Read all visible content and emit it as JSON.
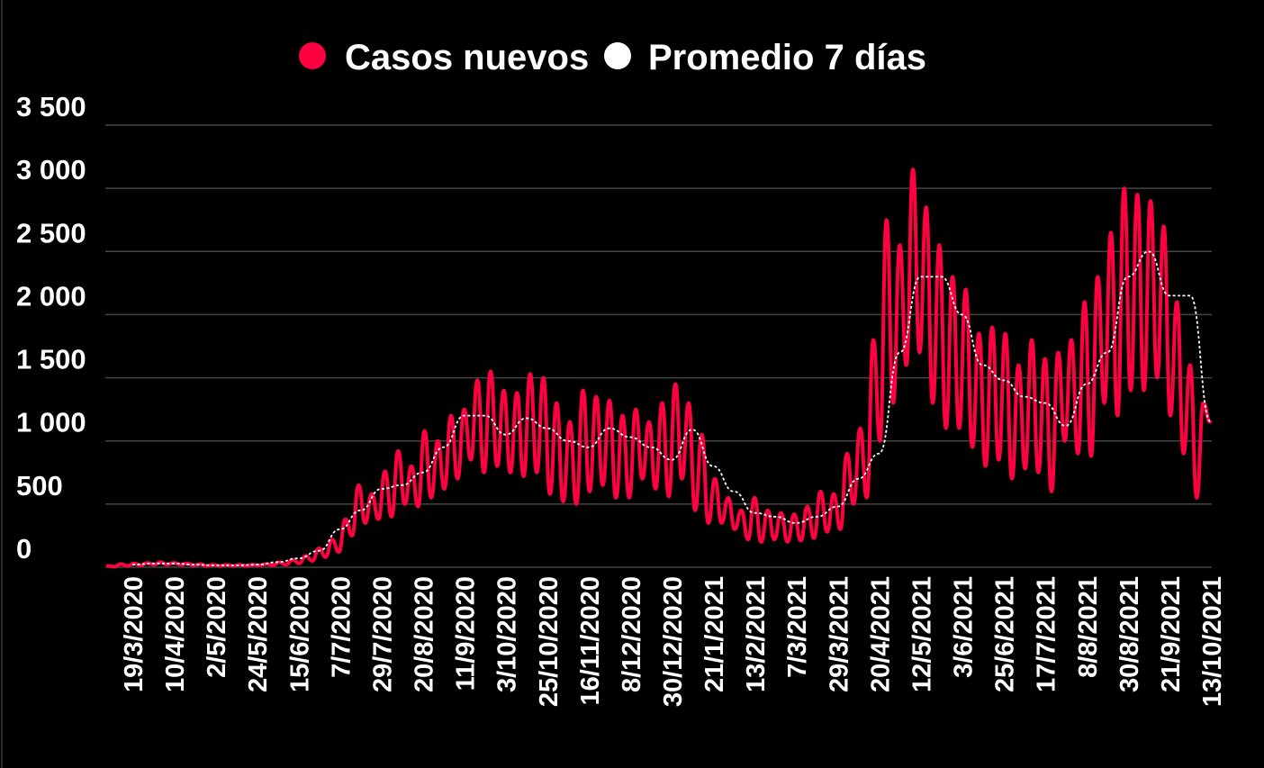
{
  "chart_data": {
    "type": "line",
    "title": "",
    "xlabel": "",
    "ylabel": "",
    "ylim": [
      0,
      3500
    ],
    "y_ticks": [
      0,
      500,
      1000,
      1500,
      2000,
      2500,
      3000,
      3500
    ],
    "y_tick_labels": [
      "0",
      "500",
      "1 000",
      "1 500",
      "2 000",
      "2 500",
      "3 000",
      "3 500"
    ],
    "x_unit": "days since 19/3/2020",
    "xlim": [
      -14,
      574
    ],
    "x_tick_step_days": 22,
    "x_tick_labels": [
      "19/3/2020",
      "10/4/2020",
      "2/5/2020",
      "24/5/2020",
      "15/6/2020",
      "7/7/2020",
      "29/7/2020",
      "20/8/2020",
      "11/9/2020",
      "3/10/2020",
      "25/10/2020",
      "16/11/2020",
      "8/12/2020",
      "30/12/2020",
      "21/1/2021",
      "13/2/2021",
      "7/3/2021",
      "29/3/2021",
      "20/4/2021",
      "12/5/2021",
      "3/6/2021",
      "25/6/2021",
      "17/7/2021",
      "8/8/2021",
      "30/8/2021",
      "21/9/2021",
      "13/10/2021"
    ],
    "grid": true,
    "legend_position": "top-center",
    "series": [
      {
        "name": "Casos nuevos",
        "color": "#ff0040",
        "x_start": -13,
        "x_step": 3.5,
        "values": [
          10,
          5,
          25,
          10,
          30,
          15,
          35,
          20,
          40,
          20,
          35,
          20,
          30,
          15,
          25,
          10,
          20,
          10,
          20,
          10,
          20,
          10,
          20,
          15,
          25,
          15,
          40,
          20,
          60,
          30,
          90,
          50,
          150,
          80,
          220,
          120,
          380,
          250,
          650,
          350,
          580,
          380,
          760,
          400,
          920,
          500,
          800,
          480,
          1080,
          550,
          1000,
          620,
          1200,
          700,
          1250,
          850,
          1480,
          750,
          1550,
          800,
          1400,
          750,
          1380,
          720,
          1530,
          750,
          1500,
          580,
          1300,
          520,
          1150,
          500,
          1400,
          600,
          1350,
          650,
          1320,
          550,
          1200,
          550,
          1250,
          700,
          1150,
          620,
          1300,
          560,
          1450,
          700,
          1300,
          450,
          1050,
          350,
          700,
          350,
          550,
          300,
          450,
          220,
          550,
          200,
          450,
          220,
          430,
          200,
          420,
          210,
          480,
          230,
          600,
          280,
          580,
          300,
          900,
          500,
          1100,
          550,
          1800,
          1000,
          2750,
          1300,
          2550,
          1600,
          3150,
          1700,
          2850,
          1300,
          2550,
          1100,
          2300,
          1100,
          2200,
          950,
          1850,
          800,
          1900,
          850,
          1850,
          700,
          1600,
          780,
          1800,
          750,
          1650,
          600,
          1700,
          1000,
          1800,
          900,
          2100,
          880,
          2300,
          1300,
          2650,
          1200,
          3000,
          1400,
          2950,
          1400,
          2900,
          1500,
          2700,
          1200,
          2100,
          900,
          1600,
          550,
          1300,
          1150
        ]
      },
      {
        "name": "Promedio 7 días",
        "color": "#ffffff",
        "x_start": 0,
        "x_step": 11,
        "values": [
          20,
          30,
          30,
          20,
          15,
          15,
          20,
          40,
          70,
          130,
          300,
          450,
          620,
          650,
          750,
          950,
          1200,
          1200,
          1050,
          1180,
          1100,
          1000,
          950,
          1100,
          1030,
          950,
          850,
          1090,
          800,
          600,
          430,
          400,
          350,
          400,
          480,
          700,
          900,
          1700,
          2300,
          2300,
          2000,
          1600,
          1480,
          1350,
          1300,
          1120,
          1450,
          1700,
          2300,
          2500,
          2150,
          2150,
          1150
        ]
      }
    ]
  }
}
